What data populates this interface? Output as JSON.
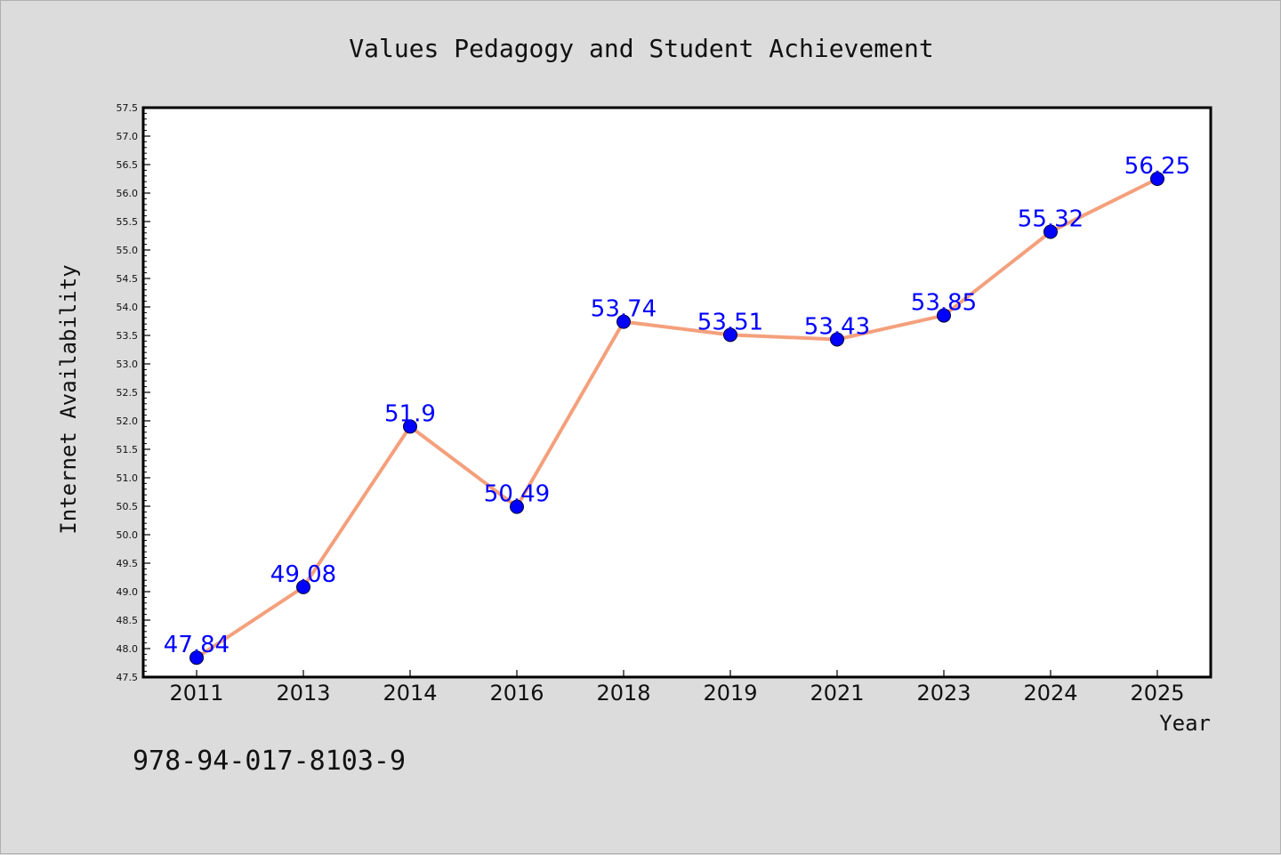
{
  "chart_data": {
    "type": "line",
    "title": "Values Pedagogy and Student Achievement",
    "xlabel": "Year",
    "ylabel": "Internet Availability",
    "categories": [
      "2011",
      "2013",
      "2014",
      "2016",
      "2018",
      "2019",
      "2021",
      "2023",
      "2024",
      "2025"
    ],
    "values": [
      47.84,
      49.08,
      51.9,
      50.49,
      53.74,
      53.51,
      53.43,
      53.85,
      55.32,
      56.25
    ],
    "data_labels": [
      "47.84",
      "49.08",
      "51.9",
      "50.49",
      "53.74",
      "53.51",
      "53.43",
      "53.85",
      "55.32",
      "56.25"
    ],
    "ylim": [
      47.5,
      57.5
    ],
    "yticks": [
      "47.5",
      "48.0",
      "48.5",
      "49.0",
      "49.5",
      "50.0",
      "50.5",
      "51.0",
      "51.5",
      "52.0",
      "52.5",
      "53.0",
      "53.5",
      "54.0",
      "54.5",
      "55.0",
      "55.5",
      "56.0",
      "56.5",
      "57.0",
      "57.5"
    ],
    "ytick_values": [
      47.5,
      48.0,
      48.5,
      49.0,
      49.5,
      50.0,
      50.5,
      51.0,
      51.5,
      52.0,
      52.5,
      53.0,
      53.5,
      54.0,
      54.5,
      55.0,
      55.5,
      56.0,
      56.5,
      57.0,
      57.5
    ],
    "grid": false,
    "legend": "none",
    "line_color": "#f4a07c",
    "marker_color": "#0000ff",
    "label_color": "#0000ff",
    "plot_background": "#ffffff",
    "figure_background": "#dcdcdc"
  },
  "annotation": {
    "isbn": "978-94-017-8103-9"
  }
}
